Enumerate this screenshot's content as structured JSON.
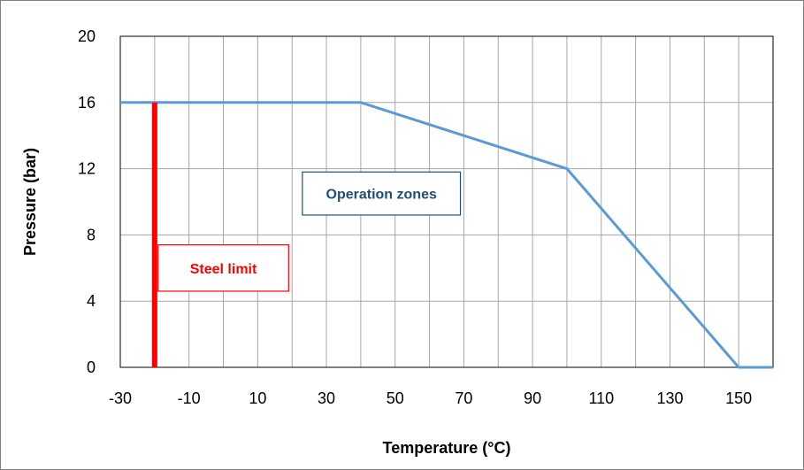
{
  "chart_data": {
    "type": "line",
    "title": "",
    "xlabel": "Temperature (°C)",
    "ylabel": "Pressure (bar)",
    "xlim": [
      -30,
      160
    ],
    "ylim": [
      0,
      20
    ],
    "grid": true,
    "x_tick_labels": [
      "-30",
      "-10",
      "10",
      "30",
      "50",
      "70",
      "90",
      "110",
      "130",
      "150"
    ],
    "y_tick_labels": [
      "0",
      "4",
      "8",
      "12",
      "16",
      "20"
    ],
    "series": [
      {
        "color": "#5B9BD5",
        "x": [
          -30,
          40,
          100,
          150,
          160
        ],
        "y": [
          16,
          16,
          12,
          0,
          0
        ]
      },
      {
        "color": "#FF0000",
        "x": [
          -20,
          -20
        ],
        "y": [
          0,
          16
        ]
      }
    ],
    "annotations": [
      {
        "text": "Operation zones",
        "color": "#1F4E79",
        "border_color": "#1F4E79"
      },
      {
        "text": "Steel limit",
        "color": "#FF0000",
        "border_color": "#FF0000"
      }
    ]
  }
}
